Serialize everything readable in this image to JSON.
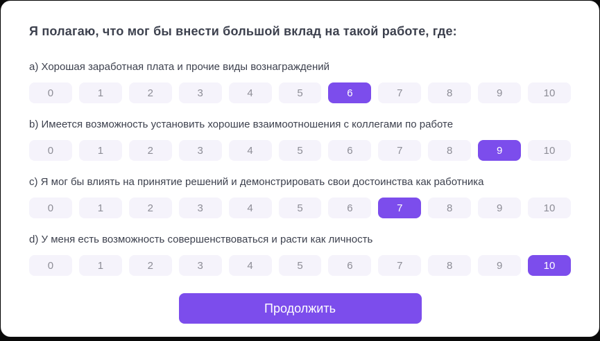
{
  "card": {
    "title": "Я полагаю, что мог бы внести большой вклад на такой работе, где:"
  },
  "scale": {
    "min": 0,
    "max": 10,
    "options": [
      "0",
      "1",
      "2",
      "3",
      "4",
      "5",
      "6",
      "7",
      "8",
      "9",
      "10"
    ]
  },
  "questions": [
    {
      "label": "a) Хорошая заработная плата и прочие виды вознаграждений",
      "selected": 6
    },
    {
      "label": "b) Имеется возможность установить хорошие взаимоотношения с коллегами по работе",
      "selected": 9
    },
    {
      "label": "c) Я мог бы влиять на принятие решений и демонстрировать свои достоинства как работника",
      "selected": 7
    },
    {
      "label": "d) У меня есть возможность совершенствоваться и расти как личность",
      "selected": 10
    }
  ],
  "continue_button": {
    "label": "Продолжить"
  },
  "colors": {
    "accent": "#7c4dec",
    "option_bg": "#f5f3fb",
    "option_text": "#8d8d96",
    "text_dark": "#3d414e",
    "page_bg": "#0a0a0a",
    "card_bg": "#ffffff"
  }
}
